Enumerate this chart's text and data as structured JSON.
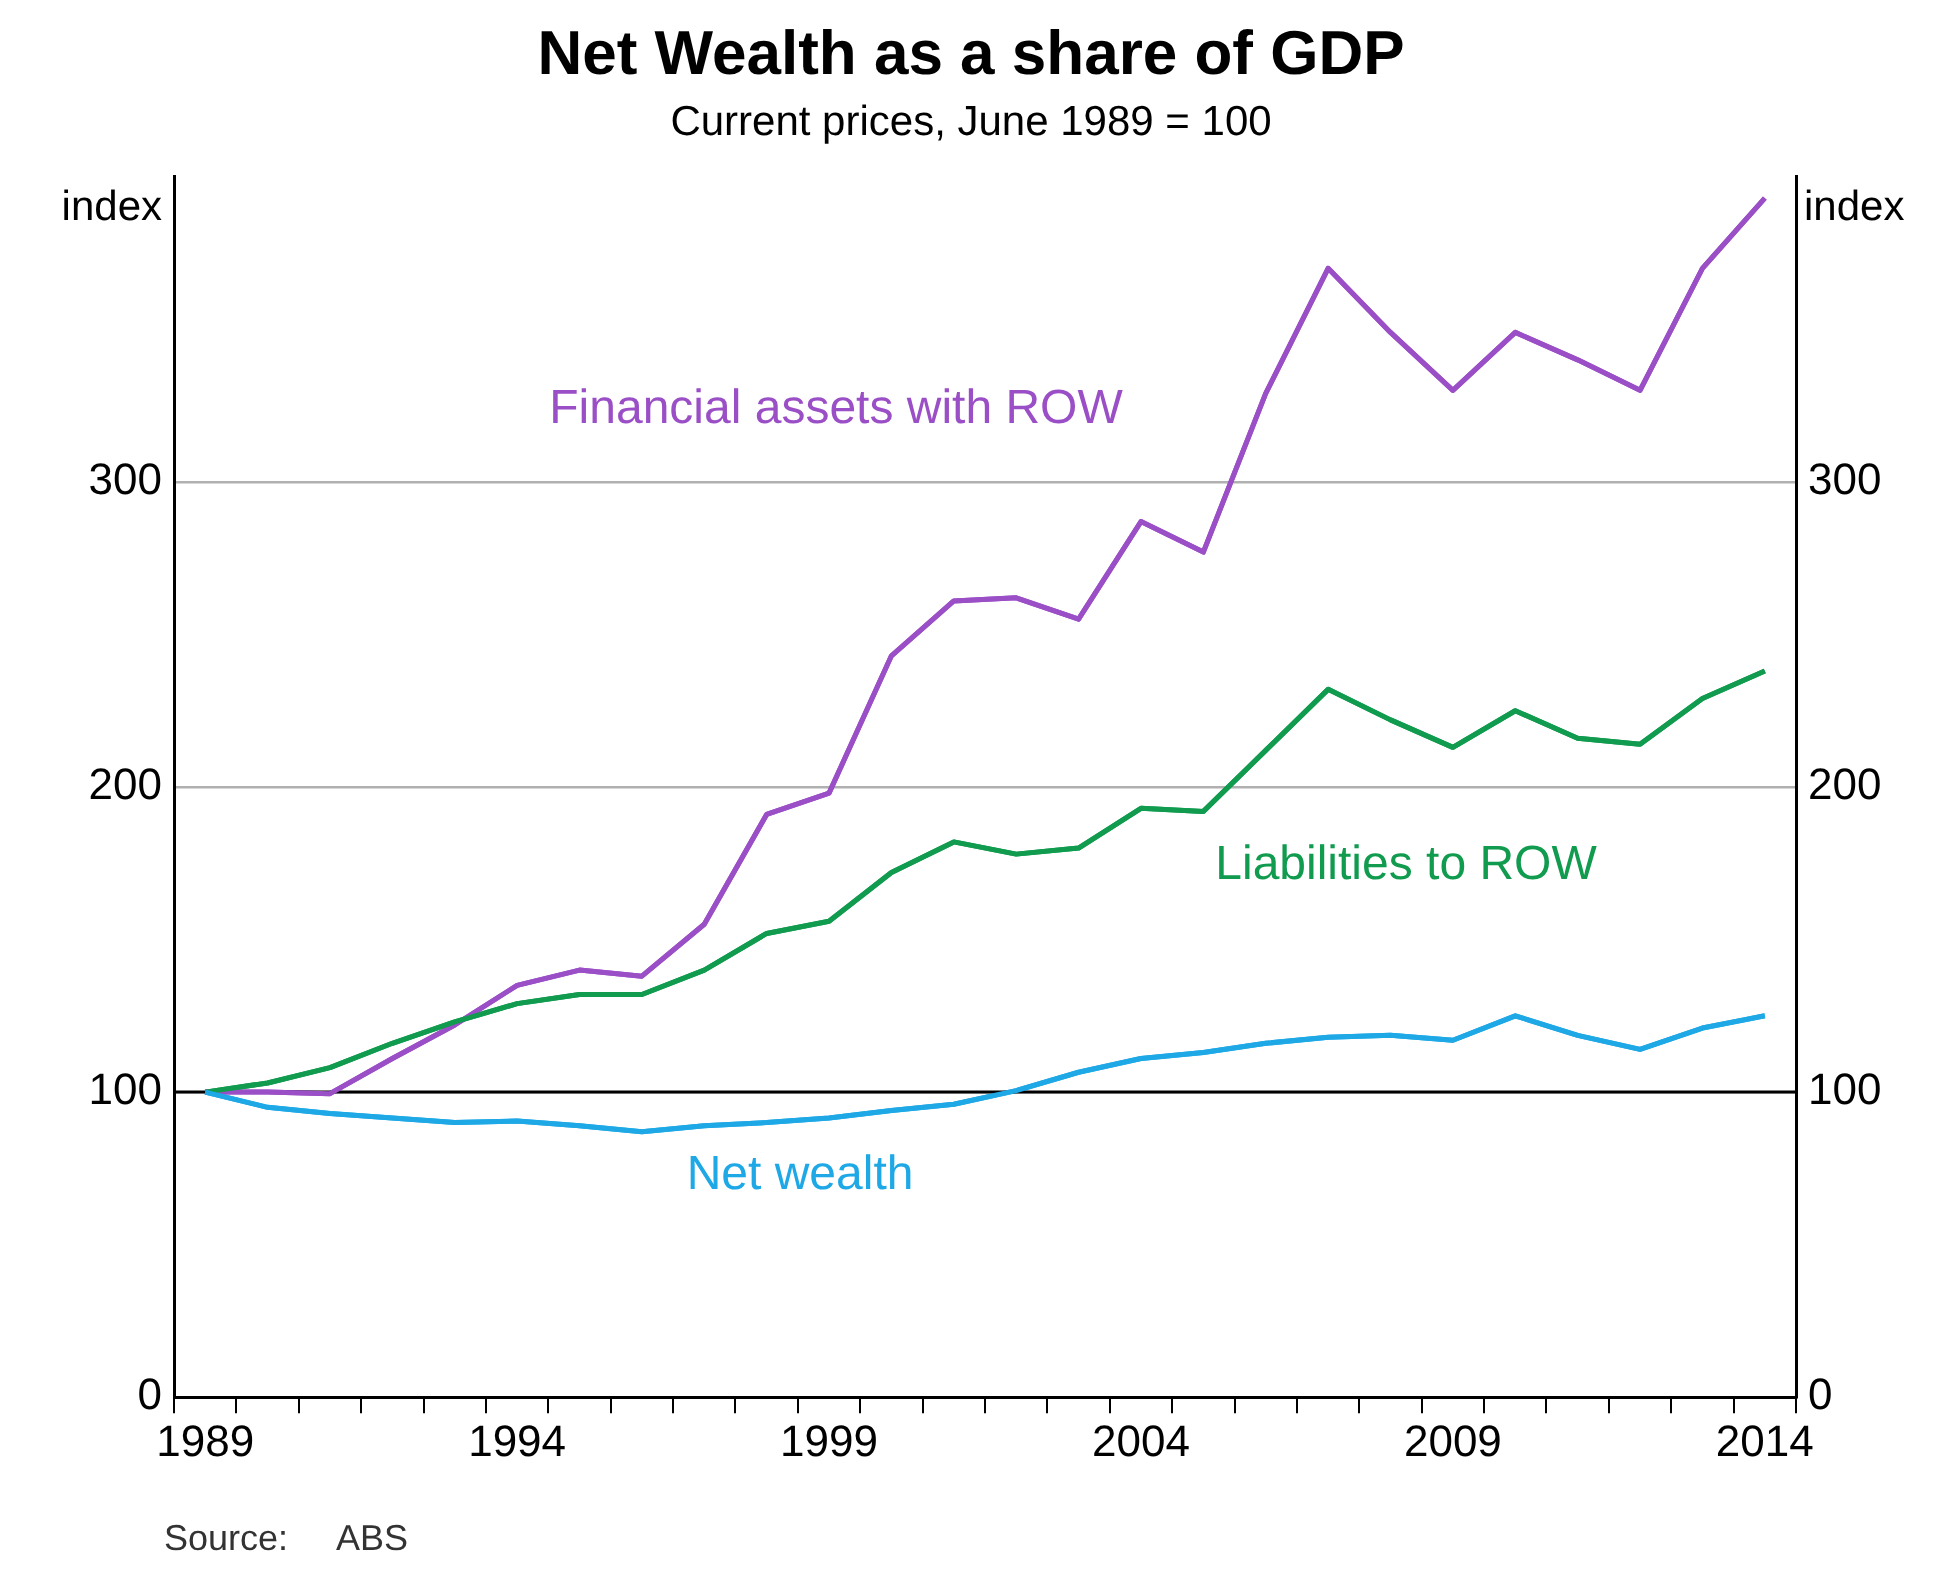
{
  "chart_data": {
    "type": "line",
    "title": "Net Wealth as a share of GDP",
    "subtitle": "Current prices, June 1989 = 100",
    "ylabel": "index",
    "y2label": "index",
    "categories": [
      "1989",
      null,
      null,
      null,
      null,
      "1994",
      null,
      null,
      null,
      null,
      "1999",
      null,
      null,
      null,
      null,
      "2004",
      null,
      null,
      null,
      null,
      "2009",
      null,
      null,
      null,
      null,
      "2014"
    ],
    "series": [
      {
        "name": "Financial assets with ROW",
        "color": "#9b4fc6",
        "values": [
          100,
          100,
          99.5,
          111,
          122,
          135,
          140,
          138,
          155,
          191,
          198,
          243,
          261,
          262,
          255,
          287,
          277,
          329,
          370,
          349,
          330,
          349,
          340,
          330,
          370,
          393
        ]
      },
      {
        "name": "Liabilities to ROW",
        "color": "#109b4f",
        "values": [
          100,
          103,
          108,
          116,
          123,
          129,
          132,
          132,
          140,
          152,
          156,
          172,
          182,
          178,
          180,
          193,
          192,
          212,
          232,
          222,
          213,
          225,
          216,
          214,
          229,
          238
        ]
      },
      {
        "name": "Net wealth",
        "color": "#1ea8e6",
        "values": [
          100,
          95,
          93,
          91.5,
          90,
          90.5,
          89,
          87,
          89,
          90,
          91.5,
          94,
          96,
          100.5,
          106.5,
          111,
          113,
          116,
          118,
          118.6,
          117,
          125,
          118.6,
          114,
          121,
          125
        ]
      }
    ],
    "ylim": [
      0,
      400
    ],
    "yticks": [
      0,
      100,
      200,
      300
    ],
    "y2lim": [
      0,
      400
    ],
    "y2ticks": [
      0,
      100,
      200,
      300
    ],
    "ref_lines": [
      {
        "axis": "y",
        "value": 100,
        "color": "#000000"
      }
    ],
    "grid": "y",
    "legend": false,
    "marker": "none",
    "line_style": "solid",
    "annotations": [
      "Source:     ABS"
    ]
  }
}
